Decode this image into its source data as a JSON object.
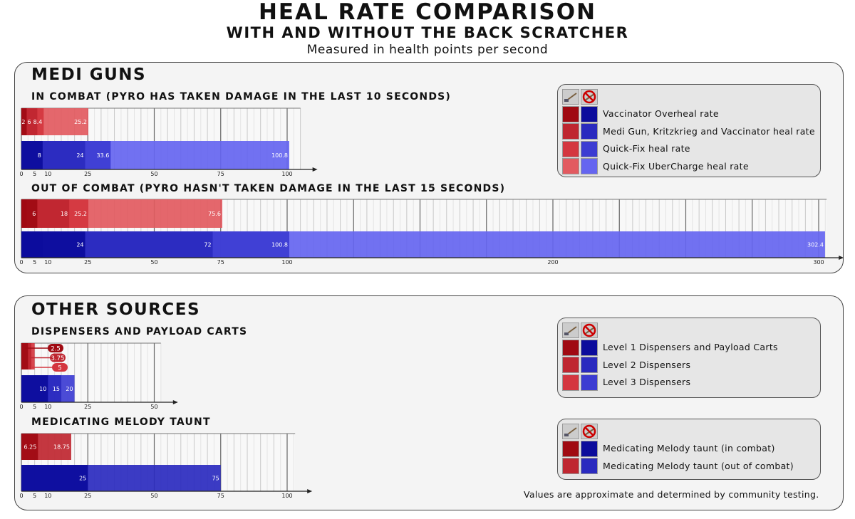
{
  "title": "HEAL RATE COMPARISON",
  "subtitle": "WITH AND WITHOUT THE BACK SCRATCHER",
  "unit_note": "Measured in health points per second",
  "sections": [
    {
      "title": "MEDI GUNS"
    },
    {
      "title": "OTHER SOURCES"
    }
  ],
  "colors": {
    "red": [
      "#a00a12",
      "#bf2630",
      "#d4363f",
      "#e25a60"
    ],
    "blue": [
      "#0c0c9c",
      "#2a2abf",
      "#3c3cd2",
      "#6565f0"
    ]
  },
  "icons": {
    "with": "back-scratcher-icon",
    "without": "no-back-scratcher-icon"
  },
  "legends": [
    {
      "items": [
        "Vaccinator Overheal rate",
        "Medi Gun, Kritzkrieg and Vaccinator heal rate",
        "Quick-Fix heal rate",
        "Quick-Fix UberCharge heal rate"
      ]
    },
    {
      "items": [
        "Level 1 Dispensers and Payload Carts",
        "Level 2 Dispensers",
        "Level 3 Dispensers"
      ]
    },
    {
      "items": [
        "Medicating Melody taunt (in combat)",
        "Medicating Melody taunt (out of combat)"
      ]
    }
  ],
  "footnote": "Values are approximate and determined by community testing.",
  "chart_data": [
    {
      "type": "bar",
      "title": "IN COMBAT (PYRO HAS TAKEN DAMAGE IN THE LAST 10 SECONDS)",
      "xlim": [
        0,
        105
      ],
      "ticks": [
        0,
        5,
        10,
        25,
        50,
        75,
        100
      ],
      "red": [
        {
          "value": 2,
          "label": "2"
        },
        {
          "value": 6,
          "label": "6"
        },
        {
          "value": 8.4,
          "label": "8.4"
        },
        {
          "value": 25.2,
          "label": "25.2"
        }
      ],
      "blue": [
        {
          "value": 8,
          "label": "8"
        },
        {
          "value": 24,
          "label": "24"
        },
        {
          "value": 33.6,
          "label": "33.6"
        },
        {
          "value": 100.8,
          "label": "100.8"
        }
      ]
    },
    {
      "type": "bar",
      "title": "OUT OF COMBAT (PYRO HASN'T TAKEN DAMAGE IN THE LAST 15 SECONDS)",
      "xlim": [
        0,
        303
      ],
      "ticks": [
        0,
        5,
        10,
        25,
        50,
        75,
        100,
        200,
        300
      ],
      "red": [
        {
          "value": 2,
          "label": ""
        },
        {
          "value": 6,
          "label": "6"
        },
        {
          "value": 18,
          "label": "18"
        },
        {
          "value": 25.2,
          "label": "25.2"
        },
        {
          "value": 75.6,
          "label": "75.6"
        }
      ],
      "blue": [
        {
          "value": 8,
          "label": ""
        },
        {
          "value": 24,
          "label": "24"
        },
        {
          "value": 72,
          "label": "72"
        },
        {
          "value": 100.8,
          "label": "100.8"
        },
        {
          "value": 302.4,
          "label": "302.4"
        }
      ]
    },
    {
      "type": "bar",
      "title": "DISPENSERS AND PAYLOAD CARTS",
      "xlim": [
        0,
        52.5
      ],
      "ticks": [
        0,
        5,
        10,
        25,
        50
      ],
      "red": [
        {
          "value": 2.5,
          "label": "2.5"
        },
        {
          "value": 3.75,
          "label": "3.75"
        },
        {
          "value": 5,
          "label": "5"
        }
      ],
      "blue": [
        {
          "value": 10,
          "label": "10"
        },
        {
          "value": 15,
          "label": "15"
        },
        {
          "value": 20,
          "label": "20"
        }
      ]
    },
    {
      "type": "bar",
      "title": "MEDICATING MELODY TAUNT",
      "xlim": [
        0,
        103
      ],
      "ticks": [
        0,
        5,
        10,
        25,
        50,
        75,
        100
      ],
      "red": [
        {
          "value": 6.25,
          "label": "6.25"
        },
        {
          "value": 18.75,
          "label": "18.75"
        }
      ],
      "blue": [
        {
          "value": 25,
          "label": "25"
        },
        {
          "value": 75,
          "label": "75"
        }
      ]
    }
  ]
}
